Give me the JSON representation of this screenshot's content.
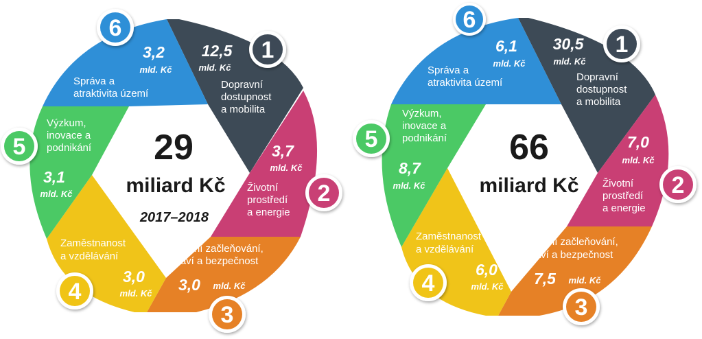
{
  "colors": {
    "dark": "#3d4a56",
    "magenta": "#c93f74",
    "orange": "#e68126",
    "yellow": "#f0c419",
    "green": "#4bc965",
    "blue": "#2f8fd7"
  },
  "left": {
    "total": "29",
    "unit": "miliard Kč",
    "period": "2017–2018",
    "segments": [
      {
        "number": "1",
        "amount": "12,5",
        "unit": "mld. Kč",
        "label": [
          "Dopravní",
          "dostupnost",
          "a mobilita"
        ]
      },
      {
        "number": "2",
        "amount": "3,7",
        "unit": "mld. Kč",
        "label": [
          "Životní",
          "prostředí",
          "a energie"
        ]
      },
      {
        "number": "3",
        "amount": "3,0",
        "unit": "mld. Kč",
        "label": [
          "Sociální začleňování,",
          "zdraví a bezpečnost"
        ]
      },
      {
        "number": "4",
        "amount": "3,0",
        "unit": "mld. Kč",
        "label": [
          "Zaměstnanost",
          "a vzdělávání"
        ]
      },
      {
        "number": "5",
        "amount": "3,1",
        "unit": "mld. Kč",
        "label": [
          "Výzkum,",
          "inovace a",
          "podnikání"
        ]
      },
      {
        "number": "6",
        "amount": "3,2",
        "unit": "mld. Kč",
        "label": [
          "Správa a",
          "atraktivita území"
        ]
      }
    ]
  },
  "right": {
    "total": "66",
    "unit": "miliard Kč",
    "segments": [
      {
        "number": "1",
        "amount": "30,5",
        "unit": "mld. Kč",
        "label": [
          "Dopravní",
          "dostupnost",
          "a mobilita"
        ]
      },
      {
        "number": "2",
        "amount": "7,0",
        "unit": "mld. Kč",
        "label": [
          "Životní",
          "prostředí",
          "a energie"
        ]
      },
      {
        "number": "3",
        "amount": "7,5",
        "unit": "mld. Kč",
        "label": [
          "Sociální začleňování,",
          "zdraví a bezpečnost"
        ]
      },
      {
        "number": "4",
        "amount": "6,0",
        "unit": "mld. Kč",
        "label": [
          "Zaměstnanost",
          "a vzdělávání"
        ]
      },
      {
        "number": "5",
        "amount": "8,7",
        "unit": "mld. Kč",
        "label": [
          "Výzkum,",
          "inovace a",
          "podnikání"
        ]
      },
      {
        "number": "6",
        "amount": "6,1",
        "unit": "mld. Kč",
        "label": [
          "Správa a",
          "atraktivita území"
        ]
      }
    ]
  }
}
